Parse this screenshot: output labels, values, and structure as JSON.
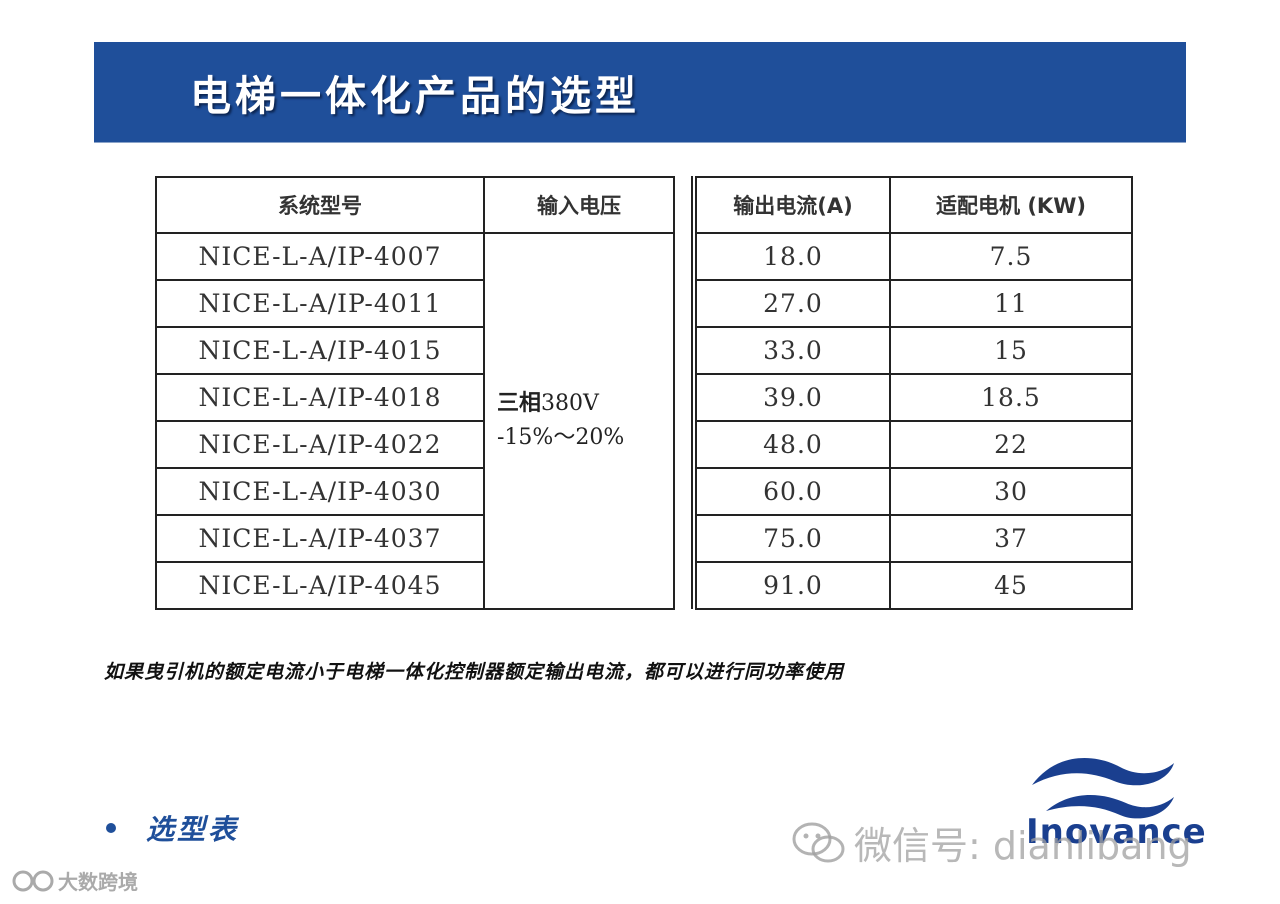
{
  "header": {
    "title": "电梯一体化产品的选型"
  },
  "table": {
    "headers": [
      "系统型号",
      "输入电压",
      "输出电流(A)",
      "适配电机 (KW)"
    ],
    "voltage": {
      "line1_bold": "三相",
      "line1_rest": "380V",
      "line2": "-15%～20%"
    },
    "rows": [
      {
        "model": "NICE-L-A/IP-4007",
        "current": "18.0",
        "motor": "7.5"
      },
      {
        "model": "NICE-L-A/IP-4011",
        "current": "27.0",
        "motor": "11"
      },
      {
        "model": "NICE-L-A/IP-4015",
        "current": "33.0",
        "motor": "15"
      },
      {
        "model": "NICE-L-A/IP-4018",
        "current": "39.0",
        "motor": "18.5"
      },
      {
        "model": "NICE-L-A/IP-4022",
        "current": "48.0",
        "motor": "22"
      },
      {
        "model": "NICE-L-A/IP-4030",
        "current": "60.0",
        "motor": "30"
      },
      {
        "model": "NICE-L-A/IP-4037",
        "current": "75.0",
        "motor": "37"
      },
      {
        "model": "NICE-L-A/IP-4045",
        "current": "91.0",
        "motor": "45"
      }
    ]
  },
  "note": "如果曳引机的额定电流小于电梯一体化控制器额定输出电流，都可以进行同功率使用",
  "bullet": {
    "text": "选型表"
  },
  "logo": {
    "text": "Inovance",
    "icon": "wave-logo-icon"
  },
  "watermark": {
    "text": "微信号: dianlibang",
    "icon": "wechat-icon"
  },
  "corner": {
    "text": "大数跨境",
    "icon": "brand-mark-icon"
  },
  "colors": {
    "banner": "#1f4f9a",
    "logo": "#1a3f8f",
    "text": "#333333"
  }
}
